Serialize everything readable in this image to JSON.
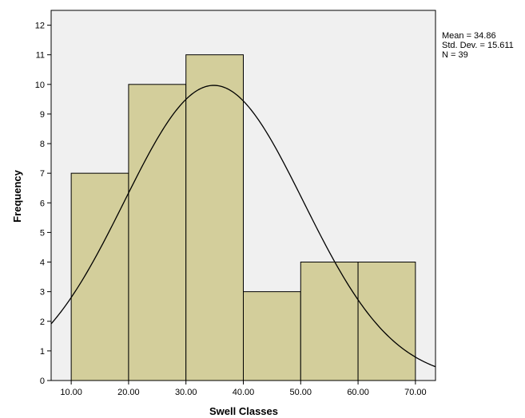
{
  "chart_data": {
    "type": "bar",
    "subtype": "histogram",
    "xlabel": "Swell Classes",
    "ylabel": "Frequency",
    "bins": [
      {
        "from": 10,
        "to": 20,
        "count": 7
      },
      {
        "from": 20,
        "to": 30,
        "count": 10
      },
      {
        "from": 30,
        "to": 40,
        "count": 11
      },
      {
        "from": 40,
        "to": 50,
        "count": 3
      },
      {
        "from": 50,
        "to": 60,
        "count": 4
      },
      {
        "from": 60,
        "to": 70,
        "count": 4
      }
    ],
    "xticks": [
      "10.00",
      "20.00",
      "30.00",
      "40.00",
      "50.00",
      "60.00",
      "70.00"
    ],
    "xtick_values": [
      10,
      20,
      30,
      40,
      50,
      60,
      70
    ],
    "yticks": [
      "0",
      "1",
      "2",
      "3",
      "4",
      "5",
      "6",
      "7",
      "8",
      "9",
      "10",
      "11",
      "12"
    ],
    "xlim": [
      6.5,
      73.5
    ],
    "ylim": [
      0,
      12.5
    ],
    "normal_curve": {
      "mean": 34.86,
      "std_dev": 15.611,
      "n": 39,
      "bin_width": 10
    },
    "stats": {
      "mean_label": "Mean = 34.86",
      "std_label": "Std. Dev. = 15.611",
      "n_label": "N = 39"
    },
    "colors": {
      "plot_background": "#f0f0f0",
      "bar_fill": "#d3ce9b",
      "bar_stroke": "#000000",
      "curve": "#000000"
    },
    "grid": false,
    "legend": "none"
  }
}
